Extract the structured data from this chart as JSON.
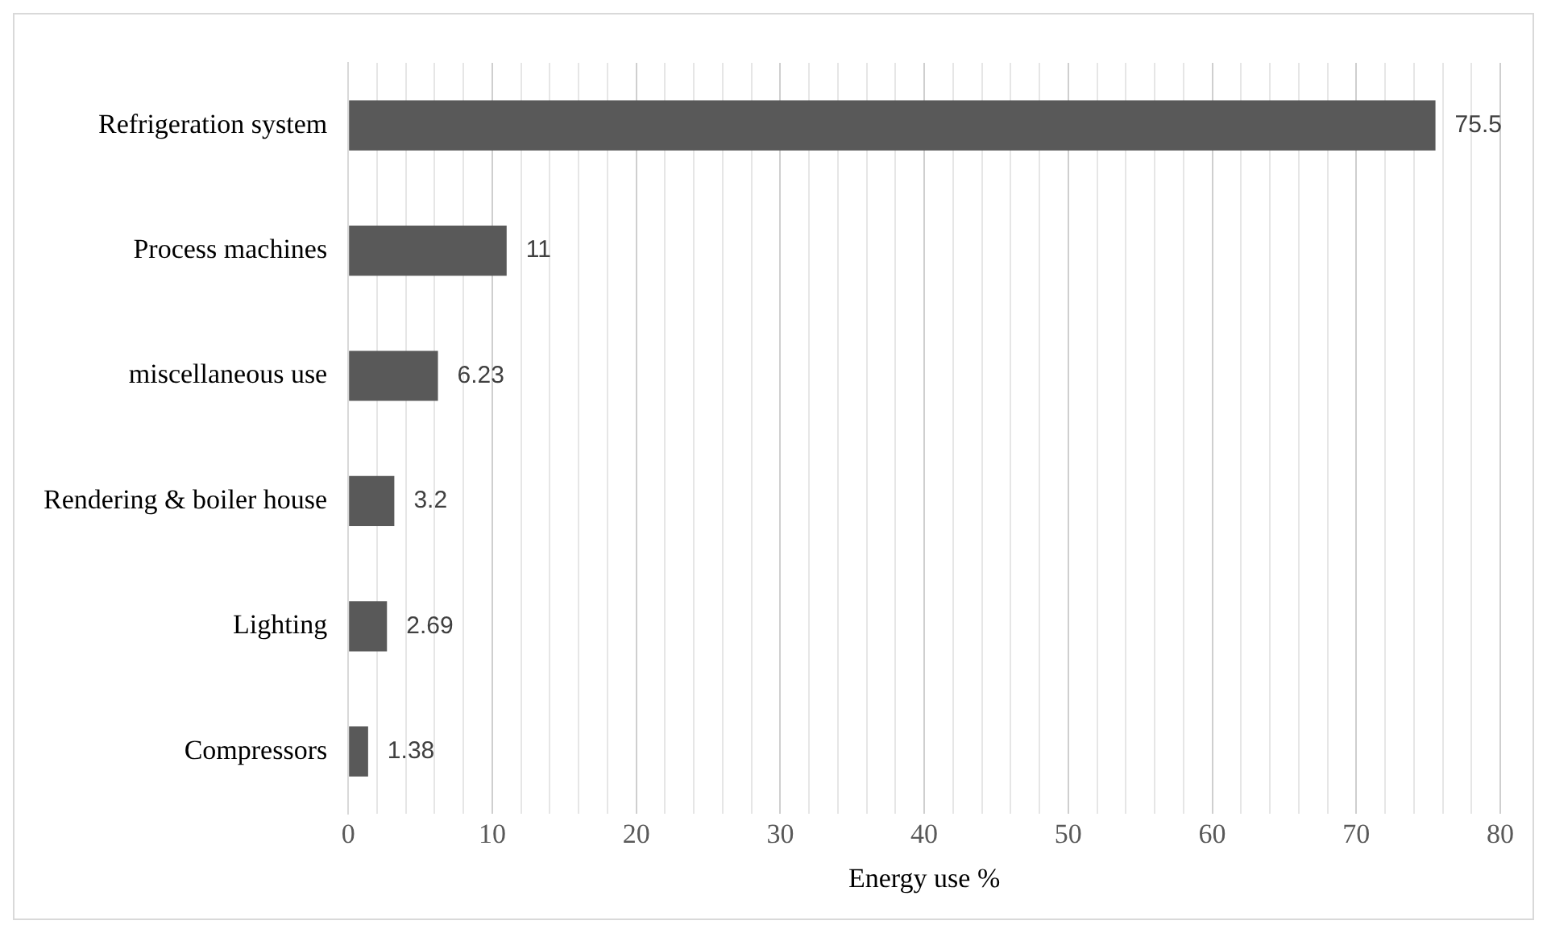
{
  "chart_data": {
    "type": "bar",
    "orientation": "horizontal",
    "xlabel": "Energy use %",
    "categories": [
      "Refrigeration system",
      "Process machines",
      "miscellaneous use",
      "Rendering & boiler house",
      "Lighting",
      "Compressors"
    ],
    "values": [
      75.5,
      11,
      6.23,
      3.2,
      2.69,
      1.38
    ],
    "color": "#595959",
    "data_labels": true,
    "xlim": [
      0,
      80
    ],
    "xticks": [
      0,
      {
        "value": 2,
        "label": null
      },
      {
        "value": 4,
        "label": null
      },
      {
        "value": 6,
        "label": null
      },
      {
        "value": 8,
        "label": null
      },
      10,
      {
        "value": 12,
        "label": null
      },
      {
        "value": 14,
        "label": null
      },
      {
        "value": 16,
        "label": null
      },
      {
        "value": 18,
        "label": null
      },
      20,
      {
        "value": 22,
        "label": null
      },
      {
        "value": 24,
        "label": null
      },
      {
        "value": 26,
        "label": null
      },
      {
        "value": 28,
        "label": null
      },
      30,
      {
        "value": 32,
        "label": null
      },
      {
        "value": 34,
        "label": null
      },
      {
        "value": 36,
        "label": null
      },
      {
        "value": 38,
        "label": null
      },
      40,
      {
        "value": 42,
        "label": null
      },
      {
        "value": 44,
        "label": null
      },
      {
        "value": 46,
        "label": null
      },
      {
        "value": 48,
        "label": null
      },
      50,
      {
        "value": 52,
        "label": null
      },
      {
        "value": 54,
        "label": null
      },
      {
        "value": 56,
        "label": null
      },
      {
        "value": 58,
        "label": null
      },
      60,
      {
        "value": 62,
        "label": null
      },
      {
        "value": 64,
        "label": null
      },
      {
        "value": 66,
        "label": null
      },
      {
        "value": 68,
        "label": null
      },
      70,
      {
        "value": 72,
        "label": null
      },
      {
        "value": 74,
        "label": null
      },
      {
        "value": 76,
        "label": null
      },
      {
        "value": 78,
        "label": null
      },
      80
    ],
    "grid": "x",
    "legend": false
  }
}
